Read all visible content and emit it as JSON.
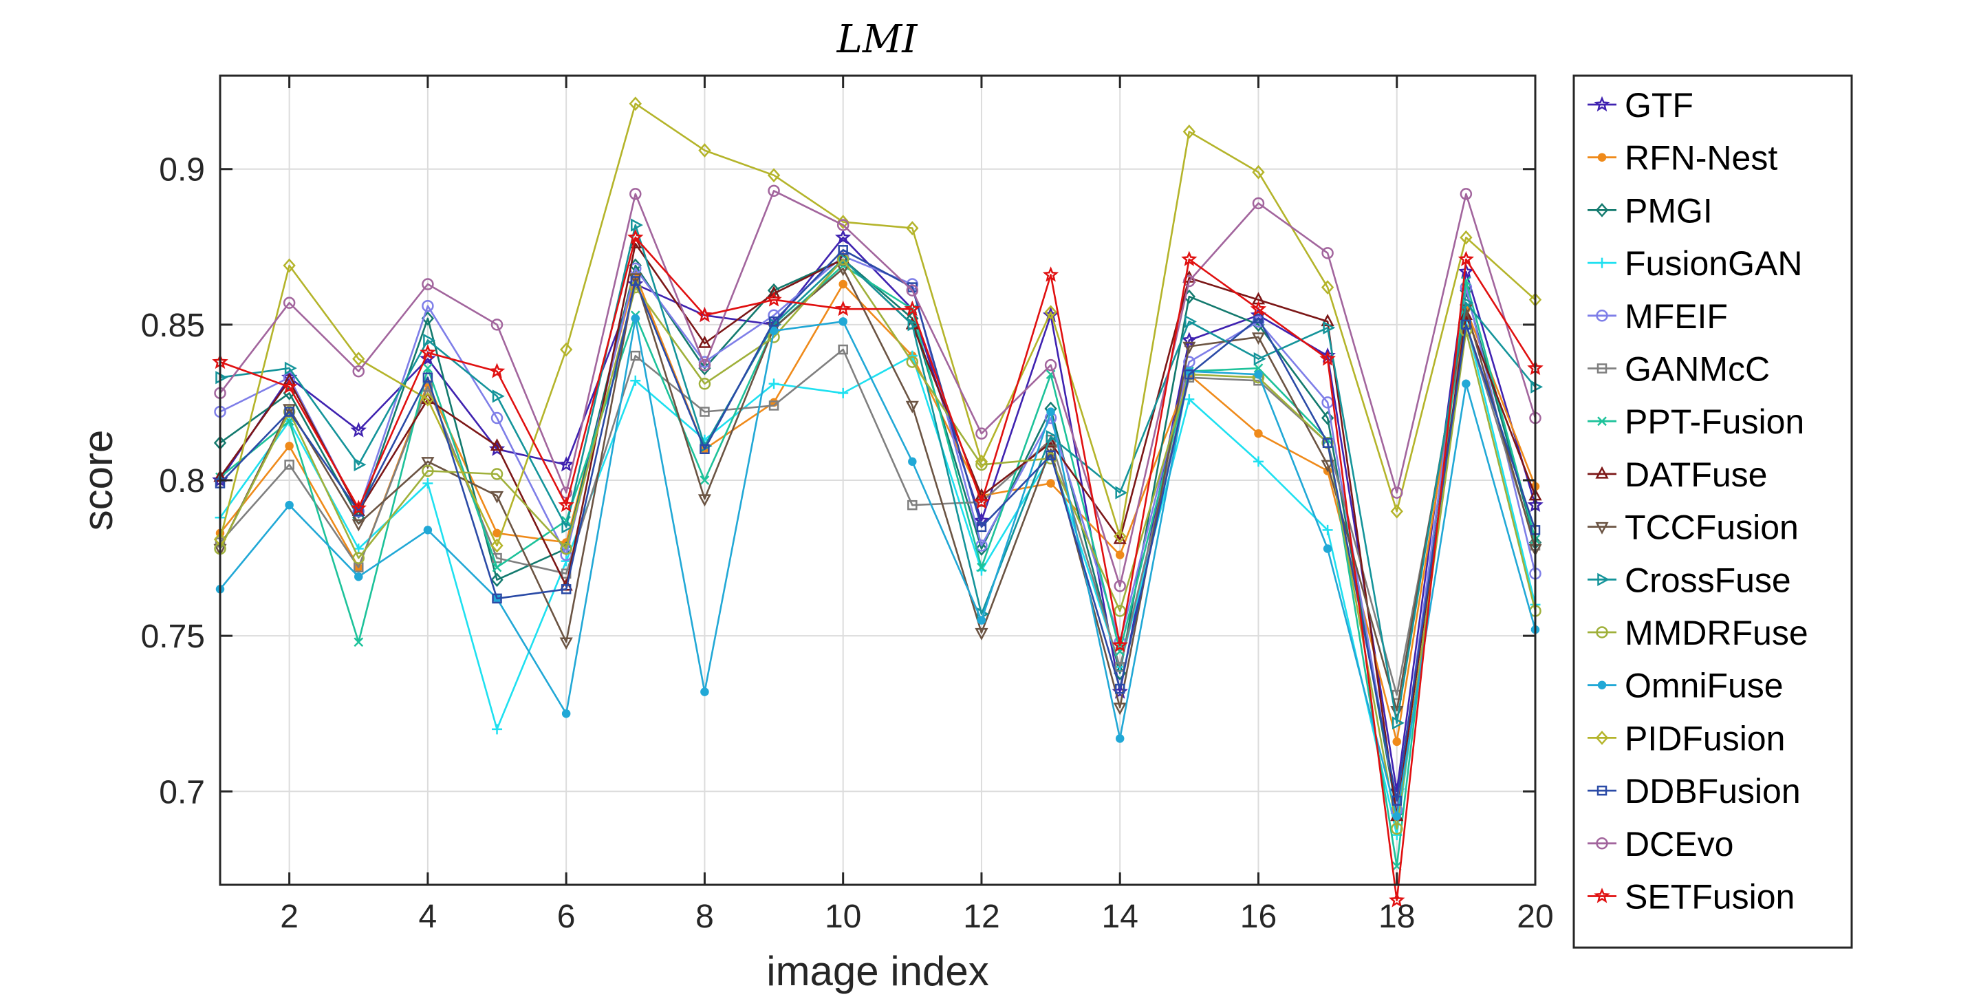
{
  "chart_data": {
    "type": "line",
    "title": "LMI",
    "xlabel": "image index",
    "ylabel": "score",
    "x": [
      1,
      2,
      3,
      4,
      5,
      6,
      7,
      8,
      9,
      10,
      11,
      12,
      13,
      14,
      15,
      16,
      17,
      18,
      19,
      20
    ],
    "xlim": [
      1,
      20
    ],
    "ylim": [
      0.67,
      0.93
    ],
    "xticks": [
      2,
      4,
      6,
      8,
      10,
      12,
      14,
      16,
      18,
      20
    ],
    "yticks": [
      0.7,
      0.75,
      0.8,
      0.85,
      0.9
    ],
    "xtick_labels": [
      "2",
      "4",
      "6",
      "8",
      "10",
      "12",
      "14",
      "16",
      "18",
      "20"
    ],
    "ytick_labels": [
      "0.7",
      "0.75",
      "0.8",
      "0.85",
      "0.9"
    ],
    "grid": true,
    "legend_position": "outside-right",
    "series": [
      {
        "name": "GTF",
        "color": "#3f22b0",
        "marker": "star",
        "values": [
          0.8,
          0.833,
          0.816,
          0.839,
          0.81,
          0.805,
          0.863,
          0.853,
          0.85,
          0.878,
          0.855,
          0.787,
          0.853,
          0.732,
          0.845,
          0.853,
          0.84,
          0.7,
          0.867,
          0.792
        ]
      },
      {
        "name": "RFN-Nest",
        "color": "#ef8a1a",
        "marker": "dot",
        "values": [
          0.783,
          0.811,
          0.772,
          0.831,
          0.783,
          0.78,
          0.866,
          0.81,
          0.825,
          0.863,
          0.84,
          0.795,
          0.799,
          0.776,
          0.834,
          0.815,
          0.803,
          0.716,
          0.855,
          0.798
        ]
      },
      {
        "name": "PMGI",
        "color": "#137a6e",
        "marker": "diamond",
        "values": [
          0.812,
          0.828,
          0.788,
          0.852,
          0.768,
          0.778,
          0.869,
          0.836,
          0.861,
          0.871,
          0.852,
          0.778,
          0.823,
          0.738,
          0.859,
          0.85,
          0.82,
          0.693,
          0.861,
          0.78
        ]
      },
      {
        "name": "FusionGAN",
        "color": "#1ee0f0",
        "marker": "plus",
        "values": [
          0.788,
          0.819,
          0.778,
          0.799,
          0.72,
          0.774,
          0.832,
          0.813,
          0.831,
          0.828,
          0.84,
          0.771,
          0.808,
          0.74,
          0.826,
          0.806,
          0.784,
          0.686,
          0.851,
          0.76
        ]
      },
      {
        "name": "MFEIF",
        "color": "#7e7ee8",
        "marker": "circle",
        "values": [
          0.822,
          0.833,
          0.79,
          0.856,
          0.82,
          0.776,
          0.868,
          0.838,
          0.853,
          0.872,
          0.863,
          0.779,
          0.82,
          0.748,
          0.838,
          0.851,
          0.825,
          0.694,
          0.862,
          0.77
        ]
      },
      {
        "name": "GANMcC",
        "color": "#7f7f7f",
        "marker": "square",
        "values": [
          0.78,
          0.805,
          0.772,
          0.83,
          0.775,
          0.77,
          0.84,
          0.822,
          0.824,
          0.842,
          0.792,
          0.793,
          0.813,
          0.74,
          0.833,
          0.832,
          0.812,
          0.731,
          0.85,
          0.779
        ]
      },
      {
        "name": "PPT-Fusion",
        "color": "#1dc29a",
        "marker": "x",
        "values": [
          0.801,
          0.819,
          0.748,
          0.836,
          0.772,
          0.787,
          0.853,
          0.8,
          0.849,
          0.869,
          0.855,
          0.772,
          0.834,
          0.745,
          0.835,
          0.836,
          0.813,
          0.676,
          0.864,
          0.781
        ]
      },
      {
        "name": "DATFuse",
        "color": "#7c1717",
        "marker": "triangle-up",
        "values": [
          0.801,
          0.832,
          0.79,
          0.826,
          0.811,
          0.766,
          0.876,
          0.844,
          0.86,
          0.871,
          0.85,
          0.795,
          0.812,
          0.781,
          0.865,
          0.858,
          0.851,
          0.692,
          0.853,
          0.795
        ]
      },
      {
        "name": "TCCFusion",
        "color": "#6b5443",
        "marker": "triangle-down",
        "values": [
          0.778,
          0.823,
          0.786,
          0.806,
          0.795,
          0.748,
          0.865,
          0.794,
          0.849,
          0.868,
          0.824,
          0.751,
          0.81,
          0.727,
          0.843,
          0.846,
          0.805,
          0.726,
          0.855,
          0.778
        ]
      },
      {
        "name": "CrossFuse",
        "color": "#14949a",
        "marker": "triangle-right",
        "values": [
          0.833,
          0.836,
          0.805,
          0.845,
          0.827,
          0.785,
          0.882,
          0.811,
          0.85,
          0.871,
          0.85,
          0.757,
          0.814,
          0.796,
          0.851,
          0.839,
          0.849,
          0.722,
          0.857,
          0.83
        ]
      },
      {
        "name": "MMDRFuse",
        "color": "#9fb03a",
        "marker": "circle",
        "values": [
          0.778,
          0.822,
          0.775,
          0.803,
          0.802,
          0.778,
          0.862,
          0.831,
          0.846,
          0.871,
          0.838,
          0.805,
          0.807,
          0.758,
          0.834,
          0.833,
          0.812,
          0.688,
          0.848,
          0.758
        ]
      },
      {
        "name": "OmniFuse",
        "color": "#21a8d6",
        "marker": "dot",
        "values": [
          0.765,
          0.792,
          0.769,
          0.784,
          0.762,
          0.725,
          0.852,
          0.732,
          0.848,
          0.851,
          0.806,
          0.755,
          0.822,
          0.717,
          0.835,
          0.834,
          0.778,
          0.692,
          0.831,
          0.752
        ]
      },
      {
        "name": "PIDFusion",
        "color": "#b4b42a",
        "marker": "diamond",
        "values": [
          0.781,
          0.869,
          0.839,
          0.826,
          0.779,
          0.842,
          0.921,
          0.906,
          0.898,
          0.883,
          0.881,
          0.806,
          0.854,
          0.782,
          0.912,
          0.899,
          0.862,
          0.79,
          0.878,
          0.858
        ]
      },
      {
        "name": "DDBFusion",
        "color": "#2a4aa6",
        "marker": "square",
        "values": [
          0.799,
          0.822,
          0.79,
          0.833,
          0.762,
          0.765,
          0.864,
          0.81,
          0.851,
          0.874,
          0.862,
          0.785,
          0.808,
          0.733,
          0.834,
          0.852,
          0.812,
          0.697,
          0.85,
          0.784
        ]
      },
      {
        "name": "DCEvo",
        "color": "#a2659d",
        "marker": "circle",
        "values": [
          0.828,
          0.857,
          0.835,
          0.863,
          0.85,
          0.796,
          0.892,
          0.837,
          0.893,
          0.882,
          0.861,
          0.815,
          0.837,
          0.766,
          0.864,
          0.889,
          0.873,
          0.796,
          0.892,
          0.82
        ]
      },
      {
        "name": "SETFusion",
        "color": "#e01010",
        "marker": "star",
        "values": [
          0.838,
          0.83,
          0.791,
          0.841,
          0.835,
          0.792,
          0.878,
          0.853,
          0.858,
          0.855,
          0.855,
          0.793,
          0.866,
          0.747,
          0.871,
          0.855,
          0.839,
          0.665,
          0.871,
          0.836
        ]
      }
    ]
  }
}
